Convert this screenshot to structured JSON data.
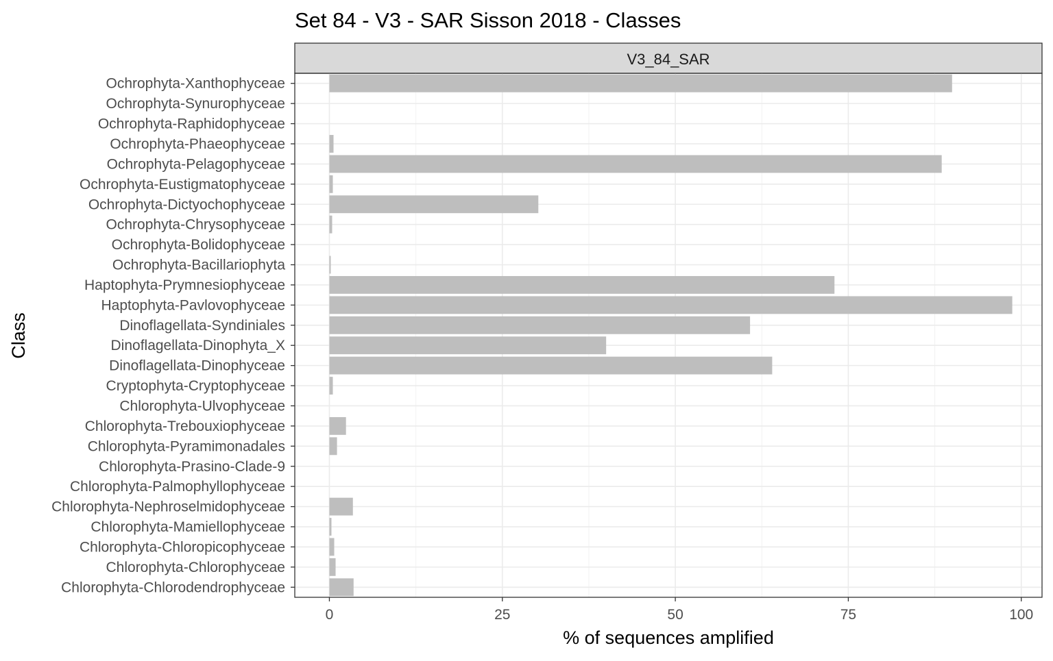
{
  "chart_data": {
    "type": "bar",
    "orientation": "horizontal",
    "title": "Set 84 - V3 - SAR Sisson 2018 - Classes",
    "facet_label": "V3_84_SAR",
    "xlabel": "% of sequences amplified",
    "ylabel": "Class",
    "xlim": [
      -5.0,
      103.0
    ],
    "xticks": [
      0,
      25,
      50,
      75,
      100
    ],
    "xtick_labels": [
      "0",
      "25",
      "50",
      "75",
      "100"
    ],
    "grid": true,
    "bar_color": "#bebebe",
    "categories": [
      "Ochrophyta-Xanthophyceae",
      "Ochrophyta-Synurophyceae",
      "Ochrophyta-Raphidophyceae",
      "Ochrophyta-Phaeophyceae",
      "Ochrophyta-Pelagophyceae",
      "Ochrophyta-Eustigmatophyceae",
      "Ochrophyta-Dictyochophyceae",
      "Ochrophyta-Chrysophyceae",
      "Ochrophyta-Bolidophyceae",
      "Ochrophyta-Bacillariophyta",
      "Haptophyta-Prymnesiophyceae",
      "Haptophyta-Pavlovophyceae",
      "Dinoflagellata-Syndiniales",
      "Dinoflagellata-Dinophyta_X",
      "Dinoflagellata-Dinophyceae",
      "Cryptophyta-Cryptophyceae",
      "Chlorophyta-Ulvophyceae",
      "Chlorophyta-Trebouxiophyceae",
      "Chlorophyta-Pyramimonadales",
      "Chlorophyta-Prasino-Clade-9",
      "Chlorophyta-Palmophyllophyceae",
      "Chlorophyta-Nephroselmidophyceae",
      "Chlorophyta-Mamiellophyceae",
      "Chlorophyta-Chloropicophyceae",
      "Chlorophyta-Chlorophyceae",
      "Chlorophyta-Chlorodendrophyceae"
    ],
    "values": [
      90.0,
      0,
      0,
      0.6,
      88.5,
      0.5,
      30.2,
      0.4,
      0,
      0.2,
      73.0,
      98.7,
      60.8,
      40.0,
      64.0,
      0.5,
      0,
      2.4,
      1.1,
      0,
      0,
      3.4,
      0.3,
      0.7,
      0.9,
      3.5
    ]
  }
}
